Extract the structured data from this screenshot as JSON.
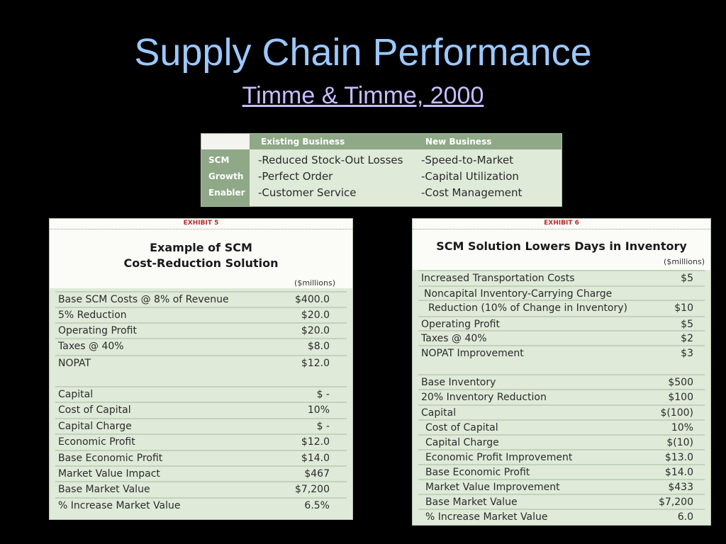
{
  "slide": {
    "title": "Supply Chain Performance",
    "subtitle": "Timme & Timme, 2000"
  },
  "growth_table": {
    "headers": [
      "Existing Business",
      "New Business"
    ],
    "row_labels": [
      "SCM",
      "Growth",
      "Enabler"
    ],
    "existing": [
      "-Reduced Stock-Out Losses",
      "-Perfect Order",
      "-Customer Service"
    ],
    "new": [
      "-Speed-to-Market",
      "-Capital Utilization",
      "-Cost Management"
    ]
  },
  "exhibit5": {
    "label": "EXHIBIT 5",
    "title_line1": "Example of SCM",
    "title_line2": "Cost-Reduction Solution",
    "units": "($millions)",
    "rows": [
      {
        "label": "Base SCM Costs @ 8% of Revenue",
        "value": "$400.0"
      },
      {
        "label": "5% Reduction",
        "value": "$20.0"
      },
      {
        "label": "Operating Profit",
        "value": "$20.0"
      },
      {
        "label": "Taxes @ 40%",
        "value": "$8.0"
      },
      {
        "label": "NOPAT",
        "value": "$12.0"
      },
      {
        "label": "Capital",
        "value": "$  -"
      },
      {
        "label": "Cost of Capital",
        "value": "10%"
      },
      {
        "label": "Capital Charge",
        "value": "$  -"
      },
      {
        "label": "Economic Profit",
        "value": "$12.0"
      },
      {
        "label": "Base Economic Profit",
        "value": "$14.0"
      },
      {
        "label": "Market Value Impact",
        "value": "$467"
      },
      {
        "label": "Base Market Value",
        "value": "$7,200"
      },
      {
        "label": "% Increase Market Value",
        "value": "6.5%"
      }
    ]
  },
  "exhibit6": {
    "label": "EXHIBIT 6",
    "title": "SCM Solution Lowers Days in Inventory",
    "units": "($millions)",
    "rows": [
      {
        "label": "Increased Transportation Costs",
        "value": "$5"
      },
      {
        "label": "Noncapital Inventory-Carrying Charge",
        "value": ""
      },
      {
        "label": "Reduction (10% of Change in Inventory)",
        "value": "$10"
      },
      {
        "label": "Operating Profit",
        "value": "$5"
      },
      {
        "label": "Taxes @ 40%",
        "value": "$2"
      },
      {
        "label": "NOPAT Improvement",
        "value": "$3"
      },
      {
        "label": "Base Inventory",
        "value": "$500"
      },
      {
        "label": "20% Inventory Reduction",
        "value": "$100"
      },
      {
        "label": "Capital",
        "value": "$(100)"
      },
      {
        "label": "Cost of Capital",
        "value": "10%"
      },
      {
        "label": "Capital Charge",
        "value": "$(10)"
      },
      {
        "label": "Economic Profit Improvement",
        "value": "$13.0"
      },
      {
        "label": "Base Economic Profit",
        "value": "$14.0"
      },
      {
        "label": "Market Value Improvement",
        "value": "$433"
      },
      {
        "label": "Base Market Value",
        "value": "$7,200"
      },
      {
        "label": "% Increase Market Value",
        "value": "6.0"
      }
    ]
  }
}
